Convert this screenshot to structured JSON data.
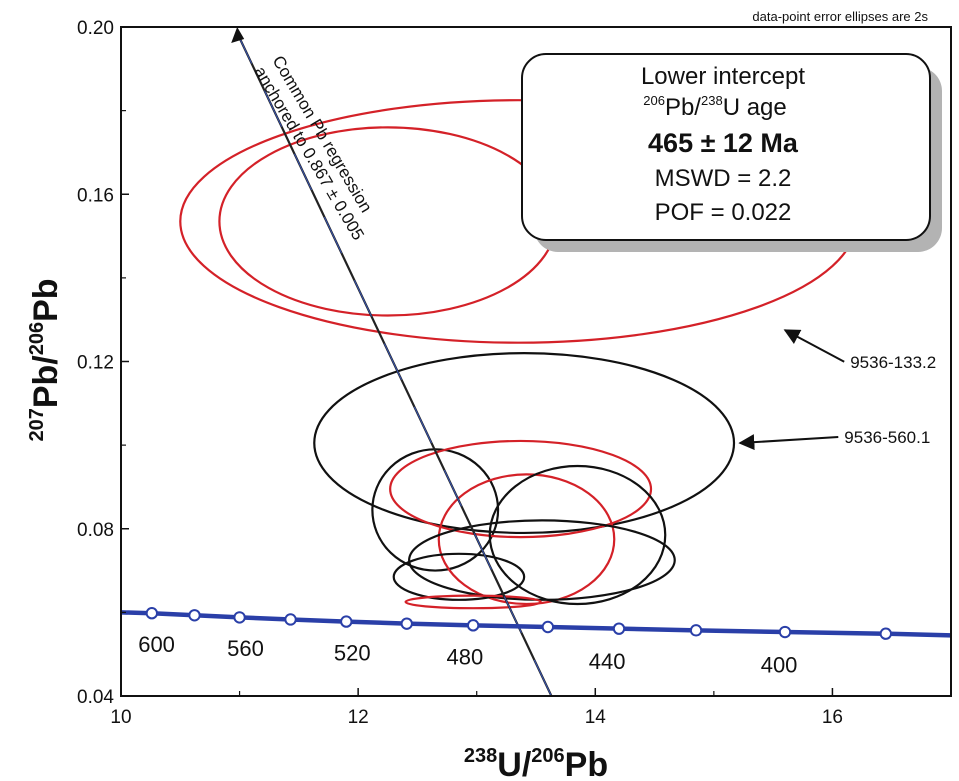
{
  "chart_data": {
    "type": "scatter",
    "title": "",
    "note": "data-point error ellipses are 2s",
    "xlabel": {
      "sup1": "238",
      "base1": "U/",
      "sup2": "206",
      "base2": "Pb"
    },
    "ylabel": {
      "sup1": "207",
      "base1": "Pb/",
      "sup2": "206",
      "base2": "Pb"
    },
    "xlim": [
      10,
      17
    ],
    "ylim": [
      0.04,
      0.2
    ],
    "xticks": [
      10,
      12,
      14,
      16
    ],
    "xtick_labels": [
      "10",
      "12",
      "14",
      "16"
    ],
    "yticks": [
      0.04,
      0.08,
      0.12,
      0.16,
      0.2
    ],
    "ytick_labels": [
      "0.04",
      "0.08",
      "0.12",
      "0.16",
      "0.20"
    ],
    "ellipses": [
      {
        "cx": 12.25,
        "cy": 0.1535,
        "rx": 1.42,
        "ry": 0.0225,
        "color": "#d42128"
      },
      {
        "cx": 13.35,
        "cy": 0.1535,
        "rx": 2.85,
        "ry": 0.029,
        "color": "#d42128"
      },
      {
        "cx": 13.4,
        "cy": 0.1005,
        "rx": 1.77,
        "ry": 0.0215,
        "color": "#111111"
      },
      {
        "cx": 12.65,
        "cy": 0.0845,
        "rx": 0.53,
        "ry": 0.0145,
        "color": "#111111"
      },
      {
        "cx": 13.37,
        "cy": 0.0895,
        "rx": 1.1,
        "ry": 0.0115,
        "color": "#d42128"
      },
      {
        "cx": 13.42,
        "cy": 0.0775,
        "rx": 0.74,
        "ry": 0.0155,
        "color": "#d42128"
      },
      {
        "cx": 13.85,
        "cy": 0.0785,
        "rx": 0.74,
        "ry": 0.0165,
        "color": "#111111"
      },
      {
        "cx": 13.55,
        "cy": 0.0725,
        "rx": 1.12,
        "ry": 0.0095,
        "color": "#111111"
      },
      {
        "cx": 12.85,
        "cy": 0.0685,
        "rx": 0.55,
        "ry": 0.0055,
        "color": "#111111"
      },
      {
        "cx": 12.97,
        "cy": 0.0625,
        "rx": 0.57,
        "ry": 0.0015,
        "color": "#d42128"
      }
    ],
    "concordia": {
      "color": "#2a3fa8",
      "x": [
        10.0,
        10.26,
        10.62,
        11.0,
        11.43,
        11.9,
        12.41,
        12.97,
        13.6,
        14.2,
        14.85,
        15.6,
        16.45,
        17.0
      ],
      "y": [
        0.06,
        0.0598,
        0.0593,
        0.0588,
        0.0583,
        0.0578,
        0.0573,
        0.0569,
        0.0565,
        0.0561,
        0.0557,
        0.0553,
        0.0549,
        0.0545
      ],
      "markers_x": [
        10.26,
        10.62,
        11.0,
        11.43,
        11.9,
        12.41,
        12.97,
        13.6,
        14.2,
        14.85,
        15.6,
        16.45
      ],
      "age_labels": [
        {
          "text": "600",
          "x": 10.3,
          "y": 0.0505
        },
        {
          "text": "560",
          "x": 11.05,
          "y": 0.0496
        },
        {
          "text": "520",
          "x": 11.95,
          "y": 0.0485
        },
        {
          "text": "480",
          "x": 12.9,
          "y": 0.0475
        },
        {
          "text": "440",
          "x": 14.1,
          "y": 0.0465
        },
        {
          "text": "400",
          "x": 15.55,
          "y": 0.0456
        }
      ]
    },
    "regression": {
      "start": [
        10.98,
        0.2
      ],
      "end": [
        13.63,
        0.04
      ],
      "label_line1": "Common Pb  regression",
      "label_line2": "anchored to 0.867 ± 0.005"
    },
    "annotations": [
      {
        "text": "9536-133.2",
        "x": 16.15,
        "y": 0.1185,
        "arrow_to": [
          15.6,
          0.1275
        ]
      },
      {
        "text": "9536-560.1",
        "x": 16.1,
        "y": 0.1005,
        "arrow_to": [
          15.22,
          0.1005
        ]
      }
    ],
    "result_box": {
      "line1": "Lower intercept",
      "line2_sup1": "206",
      "line2_base1": "Pb/",
      "line2_sup2": "238",
      "line2_base2": "U age",
      "line3": "465 ± 12 Ma",
      "line4": "MSWD = 2.2",
      "line5": "POF = 0.022"
    }
  }
}
